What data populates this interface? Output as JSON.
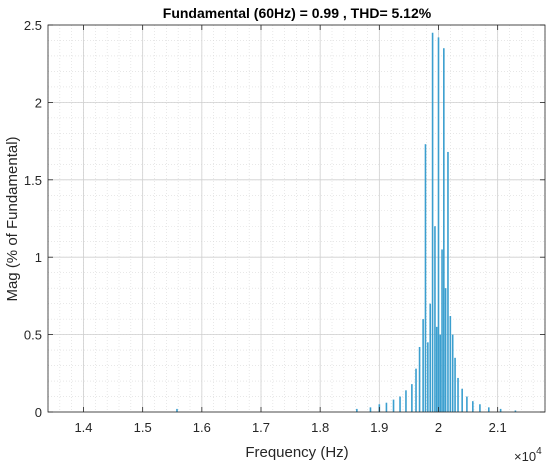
{
  "chart_data": {
    "type": "bar",
    "title": "Fundamental (60Hz) = 0.99 , THD= 5.12%",
    "xlabel": "Frequency (Hz)",
    "ylabel": "Mag (% of Fundamental)",
    "x_exponent_label": "×10",
    "x_exponent_power": "4",
    "xlim": [
      1.34,
      2.18
    ],
    "ylim": [
      0,
      2.5
    ],
    "x_ticks": [
      1.4,
      1.5,
      1.6,
      1.7,
      1.8,
      1.9,
      2.0,
      2.1
    ],
    "x_tick_labels": [
      "1.4",
      "1.5",
      "1.6",
      "1.7",
      "1.8",
      "1.9",
      "2",
      "2.1"
    ],
    "y_ticks": [
      0,
      0.5,
      1,
      1.5,
      2,
      2.5
    ],
    "y_tick_labels": [
      "0",
      "0.5",
      "1",
      "1.5",
      "2",
      "2.5"
    ],
    "grid": true,
    "minor_grid": true,
    "colors": {
      "bars": "#3b9fcf",
      "grid": "#d9d9d9",
      "axes": "#262626"
    },
    "series": [
      {
        "x_unit_multiplier": 10000,
        "x": [
          1.558,
          1.862,
          1.885,
          1.9,
          1.912,
          1.924,
          1.935,
          1.945,
          1.955,
          1.962,
          1.968,
          1.974,
          1.978,
          1.982,
          1.986,
          1.99,
          1.994,
          1.997,
          2.0,
          2.003,
          2.006,
          2.009,
          2.012,
          2.016,
          2.02,
          2.024,
          2.028,
          2.033,
          2.04,
          2.048,
          2.058,
          2.07,
          2.085,
          2.105,
          2.13
        ],
        "values": [
          0.02,
          0.02,
          0.03,
          0.05,
          0.06,
          0.08,
          0.1,
          0.14,
          0.18,
          0.28,
          0.42,
          0.6,
          1.73,
          0.45,
          0.7,
          2.45,
          1.2,
          0.55,
          2.42,
          0.5,
          1.05,
          2.35,
          0.8,
          1.68,
          0.62,
          0.5,
          0.35,
          0.22,
          0.15,
          0.1,
          0.07,
          0.05,
          0.03,
          0.02,
          0.01
        ]
      }
    ]
  }
}
